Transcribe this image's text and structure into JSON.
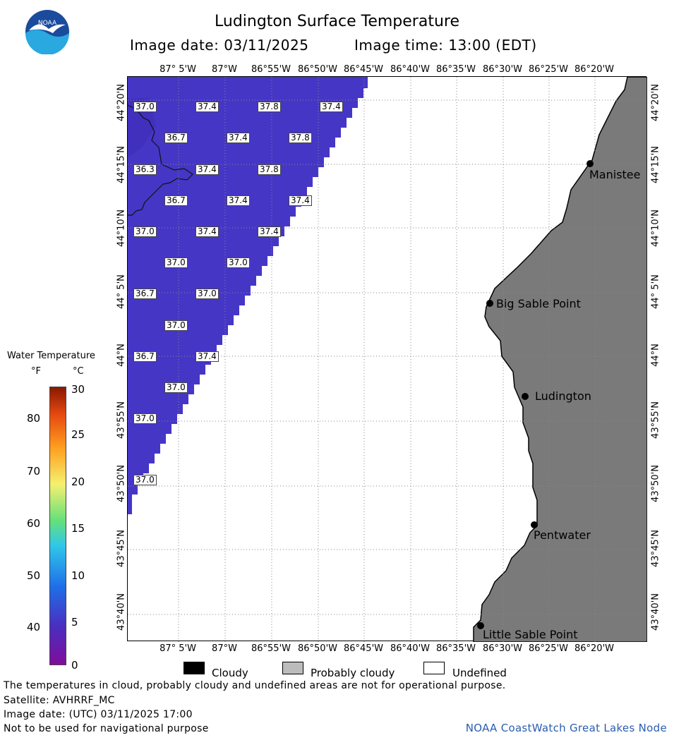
{
  "header": {
    "title": "Ludington Surface Temperature",
    "image_date": "Image date: 03/11/2025",
    "image_time": "Image time: 13:00 (EDT)"
  },
  "logo": {
    "text": "NOAA",
    "colors": {
      "top": "#1a4b9c",
      "bottom": "#2aa8e0",
      "bird": "#ffffff"
    }
  },
  "longitude_labels": [
    "87° 5'W",
    "87°W",
    "86°55'W",
    "86°50'W",
    "86°45'W",
    "86°40'W",
    "86°35'W",
    "86°30'W",
    "86°25'W",
    "86°20'W"
  ],
  "latitude_labels": [
    "44°20'N",
    "44°15'N",
    "44°10'N",
    "44° 5'N",
    "44°N",
    "43°55'N",
    "43°50'N",
    "43°45'N",
    "43°40'N"
  ],
  "temperature_labels": [
    [
      "37.0",
      "37.4",
      "37.8",
      "37.4"
    ],
    [
      "36.7",
      "37.4",
      "37.8"
    ],
    [
      "36.3",
      "37.4",
      "37.8"
    ],
    [
      "36.7",
      "37.4",
      "37.4"
    ],
    [
      "37.0",
      "37.4",
      "37.4"
    ],
    [
      "37.0",
      "37.0"
    ],
    [
      "36.7",
      "37.0"
    ],
    [
      "37.0"
    ],
    [
      "36.7",
      "37.4"
    ],
    [
      "37.0"
    ],
    [
      "37.0"
    ],
    [
      "37.0"
    ]
  ],
  "places": [
    "Manistee",
    "Big Sable Point",
    "Ludington",
    "Pentwater",
    "Little Sable Point"
  ],
  "legend": {
    "title": "Water Temperature",
    "unit_f": "°F",
    "unit_c": "°C",
    "ticks_f": [
      "80",
      "70",
      "60",
      "50",
      "40"
    ],
    "ticks_c": [
      "30",
      "25",
      "20",
      "15",
      "10",
      "5",
      "0"
    ],
    "colors": [
      "#7f0d9a",
      "#4a2fc0",
      "#1f6ee8",
      "#30c8e8",
      "#66e07a",
      "#f5f070",
      "#ffa020",
      "#e64a10",
      "#8a1800"
    ]
  },
  "key": [
    {
      "label": "Cloudy",
      "color": "#000000"
    },
    {
      "label": "Probably cloudy",
      "color": "#bcbcbc"
    },
    {
      "label": "Undefined",
      "color": "#ffffff"
    }
  ],
  "colors": {
    "water": "#4636c6",
    "water_dark": "#3f2ec0",
    "land": "#7a7a7a",
    "grid": "#888888"
  },
  "footer": {
    "line1": "The temperatures in cloud, probably cloudy and undefined areas are not for operational purpose.",
    "line2": "Satellite: AVHRRF_MC",
    "line3": "Image date: (UTC) 03/11/2025  17:00",
    "line4": "Not to be used for navigational purpose",
    "credit": "NOAA CoastWatch Great Lakes Node"
  }
}
